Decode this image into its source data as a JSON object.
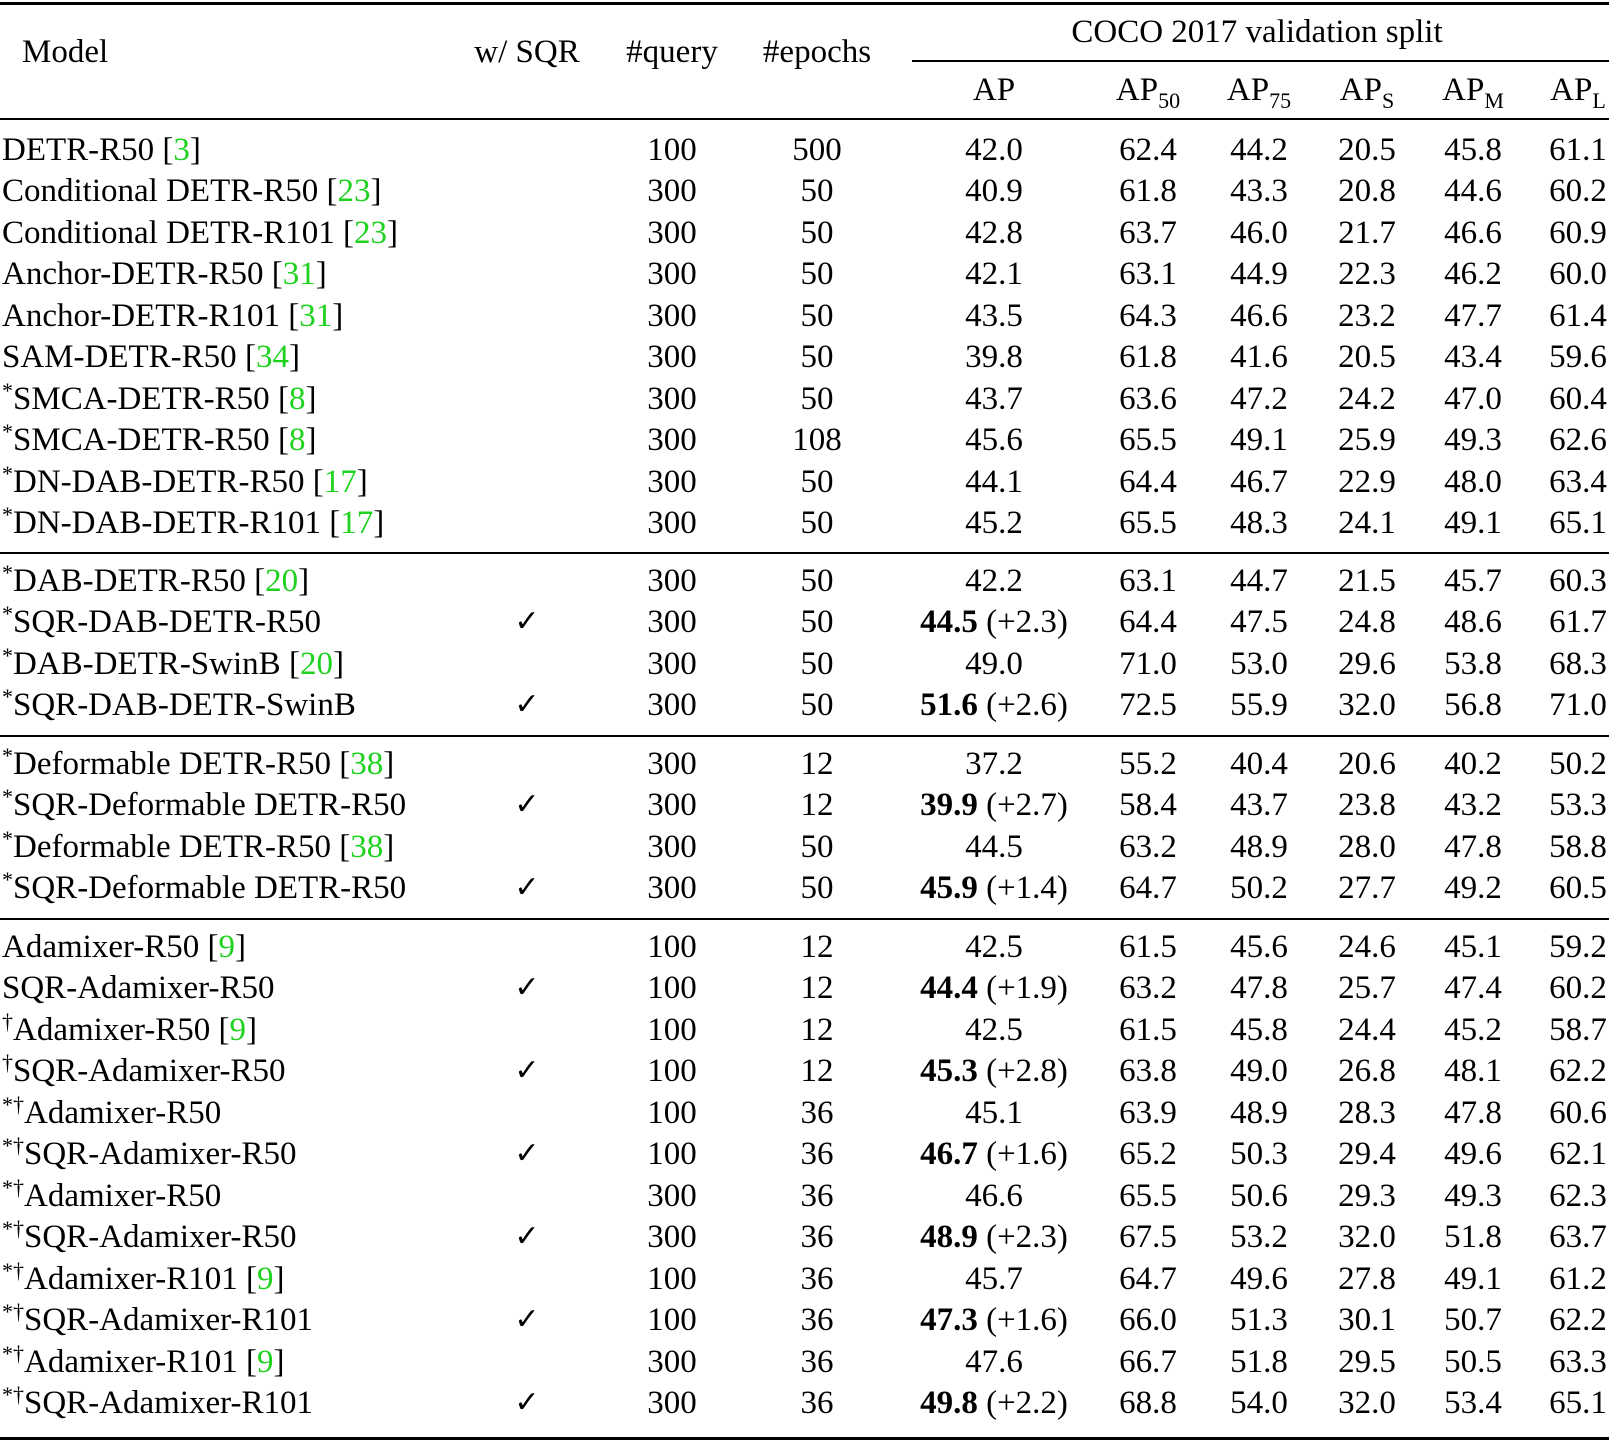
{
  "header": {
    "model": "Model",
    "sqr": "w/ SQR",
    "query": "#query",
    "epochs": "#epochs",
    "group": "COCO 2017 validation split",
    "ap": "AP",
    "ap50": "50",
    "ap75": "75",
    "aps": "S",
    "apm": "M",
    "apl": "L"
  },
  "check_glyph": "✓",
  "rows": [
    {
      "prefix": "",
      "name": "DETR-R50",
      "cite": "3",
      "sqr": false,
      "query": "100",
      "epochs": "500",
      "ap": "42.0",
      "gain": "",
      "ap50": "62.4",
      "ap75": "44.2",
      "aps": "20.5",
      "apm": "45.8",
      "apl": "61.1"
    },
    {
      "prefix": "",
      "name": "Conditional DETR-R50",
      "cite": "23",
      "sqr": false,
      "query": "300",
      "epochs": "50",
      "ap": "40.9",
      "gain": "",
      "ap50": "61.8",
      "ap75": "43.3",
      "aps": "20.8",
      "apm": "44.6",
      "apl": "60.2"
    },
    {
      "prefix": "",
      "name": "Conditional DETR-R101",
      "cite": "23",
      "sqr": false,
      "query": "300",
      "epochs": "50",
      "ap": "42.8",
      "gain": "",
      "ap50": "63.7",
      "ap75": "46.0",
      "aps": "21.7",
      "apm": "46.6",
      "apl": "60.9"
    },
    {
      "prefix": "",
      "name": "Anchor-DETR-R50",
      "cite": "31",
      "sqr": false,
      "query": "300",
      "epochs": "50",
      "ap": "42.1",
      "gain": "",
      "ap50": "63.1",
      "ap75": "44.9",
      "aps": "22.3",
      "apm": "46.2",
      "apl": "60.0"
    },
    {
      "prefix": "",
      "name": "Anchor-DETR-R101",
      "cite": "31",
      "sqr": false,
      "query": "300",
      "epochs": "50",
      "ap": "43.5",
      "gain": "",
      "ap50": "64.3",
      "ap75": "46.6",
      "aps": "23.2",
      "apm": "47.7",
      "apl": "61.4"
    },
    {
      "prefix": "",
      "name": "SAM-DETR-R50",
      "cite": "34",
      "sqr": false,
      "query": "300",
      "epochs": "50",
      "ap": "39.8",
      "gain": "",
      "ap50": "61.8",
      "ap75": "41.6",
      "aps": "20.5",
      "apm": "43.4",
      "apl": "59.6"
    },
    {
      "prefix": "*",
      "name": "SMCA-DETR-R50",
      "cite": "8",
      "sqr": false,
      "query": "300",
      "epochs": "50",
      "ap": "43.7",
      "gain": "",
      "ap50": "63.6",
      "ap75": "47.2",
      "aps": "24.2",
      "apm": "47.0",
      "apl": "60.4"
    },
    {
      "prefix": "*",
      "name": "SMCA-DETR-R50",
      "cite": "8",
      "sqr": false,
      "query": "300",
      "epochs": "108",
      "ap": "45.6",
      "gain": "",
      "ap50": "65.5",
      "ap75": "49.1",
      "aps": "25.9",
      "apm": "49.3",
      "apl": "62.6"
    },
    {
      "prefix": "*",
      "name": "DN-DAB-DETR-R50",
      "cite": "17",
      "sqr": false,
      "query": "300",
      "epochs": "50",
      "ap": "44.1",
      "gain": "",
      "ap50": "64.4",
      "ap75": "46.7",
      "aps": "22.9",
      "apm": "48.0",
      "apl": "63.4"
    },
    {
      "prefix": "*",
      "name": "DN-DAB-DETR-R101",
      "cite": "17",
      "sqr": false,
      "query": "300",
      "epochs": "50",
      "ap": "45.2",
      "gain": "",
      "ap50": "65.5",
      "ap75": "48.3",
      "aps": "24.1",
      "apm": "49.1",
      "apl": "65.1"
    },
    {
      "prefix": "*",
      "name": "DAB-DETR-R50",
      "cite": "20",
      "sqr": false,
      "query": "300",
      "epochs": "50",
      "ap": "42.2",
      "gain": "",
      "ap50": "63.1",
      "ap75": "44.7",
      "aps": "21.5",
      "apm": "45.7",
      "apl": "60.3"
    },
    {
      "prefix": "*",
      "name": "SQR-DAB-DETR-R50",
      "cite": "",
      "sqr": true,
      "query": "300",
      "epochs": "50",
      "ap": "44.5",
      "gain": "(+2.3)",
      "ap50": "64.4",
      "ap75": "47.5",
      "aps": "24.8",
      "apm": "48.6",
      "apl": "61.7"
    },
    {
      "prefix": "*",
      "name": "DAB-DETR-SwinB",
      "cite": "20",
      "sqr": false,
      "query": "300",
      "epochs": "50",
      "ap": "49.0",
      "gain": "",
      "ap50": "71.0",
      "ap75": "53.0",
      "aps": "29.6",
      "apm": "53.8",
      "apl": "68.3"
    },
    {
      "prefix": "*",
      "name": "SQR-DAB-DETR-SwinB",
      "cite": "",
      "sqr": true,
      "query": "300",
      "epochs": "50",
      "ap": "51.6",
      "gain": "(+2.6)",
      "ap50": "72.5",
      "ap75": "55.9",
      "aps": "32.0",
      "apm": "56.8",
      "apl": "71.0"
    },
    {
      "prefix": "*",
      "name": "Deformable DETR-R50",
      "cite": "38",
      "sqr": false,
      "query": "300",
      "epochs": "12",
      "ap": "37.2",
      "gain": "",
      "ap50": "55.2",
      "ap75": "40.4",
      "aps": "20.6",
      "apm": "40.2",
      "apl": "50.2"
    },
    {
      "prefix": "*",
      "name": "SQR-Deformable DETR-R50",
      "cite": "",
      "sqr": true,
      "query": "300",
      "epochs": "12",
      "ap": "39.9",
      "gain": "(+2.7)",
      "ap50": "58.4",
      "ap75": "43.7",
      "aps": "23.8",
      "apm": "43.2",
      "apl": "53.3"
    },
    {
      "prefix": "*",
      "name": "Deformable DETR-R50",
      "cite": "38",
      "sqr": false,
      "query": "300",
      "epochs": "50",
      "ap": "44.5",
      "gain": "",
      "ap50": "63.2",
      "ap75": "48.9",
      "aps": "28.0",
      "apm": "47.8",
      "apl": "58.8"
    },
    {
      "prefix": "*",
      "name": "SQR-Deformable DETR-R50",
      "cite": "",
      "sqr": true,
      "query": "300",
      "epochs": "50",
      "ap": "45.9",
      "gain": "(+1.4)",
      "ap50": "64.7",
      "ap75": "50.2",
      "aps": "27.7",
      "apm": "49.2",
      "apl": "60.5"
    },
    {
      "prefix": "",
      "name": "Adamixer-R50",
      "cite": "9",
      "sqr": false,
      "query": "100",
      "epochs": "12",
      "ap": "42.5",
      "gain": "",
      "ap50": "61.5",
      "ap75": "45.6",
      "aps": "24.6",
      "apm": "45.1",
      "apl": "59.2"
    },
    {
      "prefix": "",
      "name": "SQR-Adamixer-R50",
      "cite": "",
      "sqr": true,
      "query": "100",
      "epochs": "12",
      "ap": "44.4",
      "gain": "(+1.9)",
      "ap50": "63.2",
      "ap75": "47.8",
      "aps": "25.7",
      "apm": "47.4",
      "apl": "60.2"
    },
    {
      "prefix": "†",
      "name": "Adamixer-R50",
      "cite": "9",
      "sqr": false,
      "query": "100",
      "epochs": "12",
      "ap": "42.5",
      "gain": "",
      "ap50": "61.5",
      "ap75": "45.8",
      "aps": "24.4",
      "apm": "45.2",
      "apl": "58.7"
    },
    {
      "prefix": "†",
      "name": "SQR-Adamixer-R50",
      "cite": "",
      "sqr": true,
      "query": "100",
      "epochs": "12",
      "ap": "45.3",
      "gain": "(+2.8)",
      "ap50": "63.8",
      "ap75": "49.0",
      "aps": "26.8",
      "apm": "48.1",
      "apl": "62.2"
    },
    {
      "prefix": "*†",
      "name": "Adamixer-R50",
      "cite": "",
      "sqr": false,
      "query": "100",
      "epochs": "36",
      "ap": "45.1",
      "gain": "",
      "ap50": "63.9",
      "ap75": "48.9",
      "aps": "28.3",
      "apm": "47.8",
      "apl": "60.6"
    },
    {
      "prefix": "*†",
      "name": "SQR-Adamixer-R50",
      "cite": "",
      "sqr": true,
      "query": "100",
      "epochs": "36",
      "ap": "46.7",
      "gain": "(+1.6)",
      "ap50": "65.2",
      "ap75": "50.3",
      "aps": "29.4",
      "apm": "49.6",
      "apl": "62.1"
    },
    {
      "prefix": "*†",
      "name": "Adamixer-R50",
      "cite": "",
      "sqr": false,
      "query": "300",
      "epochs": "36",
      "ap": "46.6",
      "gain": "",
      "ap50": "65.5",
      "ap75": "50.6",
      "aps": "29.3",
      "apm": "49.3",
      "apl": "62.3"
    },
    {
      "prefix": "*†",
      "name": "SQR-Adamixer-R50",
      "cite": "",
      "sqr": true,
      "query": "300",
      "epochs": "36",
      "ap": "48.9",
      "gain": "(+2.3)",
      "ap50": "67.5",
      "ap75": "53.2",
      "aps": "32.0",
      "apm": "51.8",
      "apl": "63.7"
    },
    {
      "prefix": "*†",
      "name": "Adamixer-R101",
      "cite": "9",
      "sqr": false,
      "query": "100",
      "epochs": "36",
      "ap": "45.7",
      "gain": "",
      "ap50": "64.7",
      "ap75": "49.6",
      "aps": "27.8",
      "apm": "49.1",
      "apl": "61.2"
    },
    {
      "prefix": "*†",
      "name": "SQR-Adamixer-R101",
      "cite": "",
      "sqr": true,
      "query": "100",
      "epochs": "36",
      "ap": "47.3",
      "gain": "(+1.6)",
      "ap50": "66.0",
      "ap75": "51.3",
      "aps": "30.1",
      "apm": "50.7",
      "apl": "62.2"
    },
    {
      "prefix": "*†",
      "name": "Adamixer-R101",
      "cite": "9",
      "sqr": false,
      "query": "300",
      "epochs": "36",
      "ap": "47.6",
      "gain": "",
      "ap50": "66.7",
      "ap75": "51.8",
      "aps": "29.5",
      "apm": "50.5",
      "apl": "63.3"
    },
    {
      "prefix": "*†",
      "name": "SQR-Adamixer-R101",
      "cite": "",
      "sqr": true,
      "query": "300",
      "epochs": "36",
      "ap": "49.8",
      "gain": "(+2.2)",
      "ap50": "68.8",
      "ap75": "54.0",
      "aps": "32.0",
      "apm": "53.4",
      "apl": "65.1"
    }
  ]
}
